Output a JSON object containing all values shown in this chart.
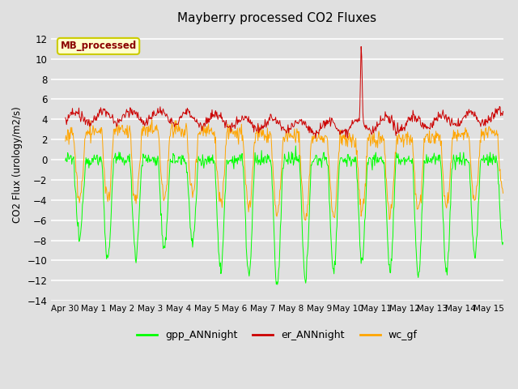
{
  "title": "Mayberry processed CO2 Fluxes",
  "ylabel": "CO2 Flux (urology/m2/s)",
  "ylim": [
    -14,
    13
  ],
  "yticks": [
    -14,
    -12,
    -10,
    -8,
    -6,
    -4,
    -2,
    0,
    2,
    4,
    6,
    8,
    10,
    12
  ],
  "bg_color": "#e0e0e0",
  "grid_color": "#ffffff",
  "colors": {
    "gpp": "#00ff00",
    "er": "#cc0000",
    "wc": "#ffa500"
  },
  "legend_label": "MB_processed",
  "legend_fg": "#8b0000",
  "legend_bg": "#ffffcc",
  "legend_border": "#cccc00",
  "n_days": 15.5,
  "ppd": 48,
  "start_day": -0.5,
  "tick_labels": [
    "Apr 30",
    "May 1",
    "May 2",
    "May 3",
    "May 4",
    "May 5",
    "May 6",
    "May 7",
    "May 8",
    "May 9",
    "May 10",
    "May 11",
    "May 12",
    "May 13",
    "May 14",
    "May 15"
  ]
}
